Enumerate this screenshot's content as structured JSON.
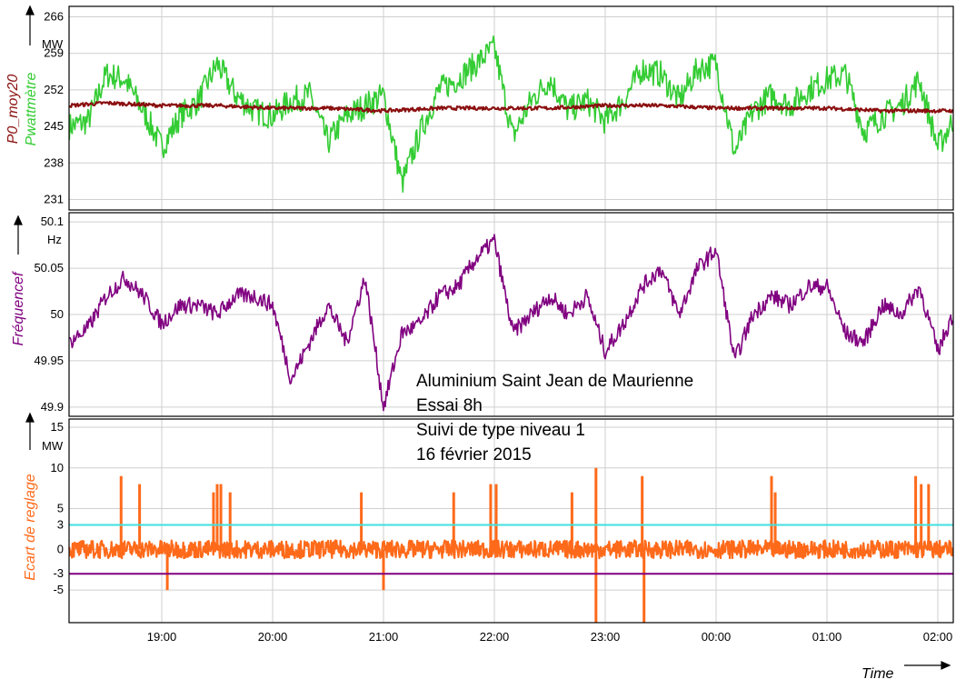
{
  "chart_data": [
    {
      "type": "line",
      "panel": "power",
      "ylabel_primary": "Pwattmètre",
      "ylabel_secondary": "P0_moy20",
      "unit": "MW",
      "ylim": [
        229,
        268
      ],
      "yticks": [
        231,
        238,
        245,
        252,
        259,
        266
      ],
      "grid": true,
      "colors": {
        "primary": "#33cc33",
        "secondary": "#8b1010"
      },
      "series": [
        {
          "name": "Pwattmètre",
          "x": [
            "18:10",
            "18:20",
            "18:30",
            "18:40",
            "18:50",
            "19:00",
            "19:10",
            "19:20",
            "19:30",
            "19:40",
            "19:50",
            "20:00",
            "20:10",
            "20:20",
            "20:30",
            "20:40",
            "20:50",
            "21:00",
            "21:10",
            "21:20",
            "21:30",
            "21:40",
            "21:50",
            "22:00",
            "22:10",
            "22:20",
            "22:30",
            "22:40",
            "22:50",
            "23:00",
            "23:10",
            "23:20",
            "23:30",
            "23:40",
            "23:50",
            "00:00",
            "00:10",
            "00:20",
            "00:30",
            "00:40",
            "00:50",
            "01:00",
            "01:10",
            "01:20",
            "01:30",
            "01:40",
            "01:50",
            "02:00",
            "02:08"
          ],
          "values": [
            245,
            246,
            255,
            254,
            248,
            241,
            247,
            250,
            257,
            251,
            248,
            247,
            250,
            251,
            242,
            247,
            249,
            251,
            234,
            244,
            252,
            254,
            257,
            260,
            243,
            250,
            254,
            248,
            250,
            246,
            250,
            256,
            255,
            250,
            256,
            257,
            240,
            248,
            251,
            249,
            252,
            254,
            255,
            244,
            247,
            249,
            254,
            241,
            246
          ]
        },
        {
          "name": "P0_moy20",
          "x": [
            "18:10",
            "18:30",
            "19:00",
            "19:30",
            "20:00",
            "20:30",
            "21:00",
            "21:30",
            "22:00",
            "22:30",
            "23:00",
            "23:30",
            "00:00",
            "00:30",
            "01:00",
            "01:30",
            "02:00",
            "02:08"
          ],
          "values": [
            249,
            249.5,
            249,
            249,
            248.5,
            248.5,
            248,
            248.5,
            248.5,
            248.5,
            249,
            249,
            248.5,
            248.5,
            248.5,
            248,
            248,
            248
          ]
        }
      ]
    },
    {
      "type": "line",
      "panel": "frequency",
      "ylabel": "Fréquencef",
      "unit": "Hz",
      "ylim": [
        49.89,
        50.11
      ],
      "yticks": [
        49.9,
        49.95,
        50,
        50.05,
        50.1
      ],
      "ytick_labels": [
        "49.9",
        "49.95",
        "50",
        "50.05",
        "50.1"
      ],
      "grid": true,
      "colors": {
        "primary": "#800080"
      },
      "series": [
        {
          "name": "Fréquencef",
          "x": [
            "18:10",
            "18:20",
            "18:30",
            "18:40",
            "18:50",
            "19:00",
            "19:10",
            "19:20",
            "19:30",
            "19:40",
            "19:50",
            "20:00",
            "20:10",
            "20:20",
            "20:30",
            "20:40",
            "20:50",
            "21:00",
            "21:10",
            "21:20",
            "21:30",
            "21:40",
            "21:50",
            "22:00",
            "22:10",
            "22:20",
            "22:30",
            "22:40",
            "22:50",
            "23:00",
            "23:10",
            "23:20",
            "23:30",
            "23:40",
            "23:50",
            "00:00",
            "00:10",
            "00:20",
            "00:30",
            "00:40",
            "00:50",
            "01:00",
            "01:10",
            "01:20",
            "01:30",
            "01:40",
            "01:50",
            "02:00",
            "02:08"
          ],
          "values": [
            49.97,
            49.985,
            50.02,
            50.04,
            50.02,
            49.99,
            50.01,
            50.01,
            50.0,
            50.02,
            50.02,
            50.01,
            49.93,
            49.97,
            50.01,
            49.97,
            50.04,
            49.9,
            49.98,
            49.99,
            50.02,
            50.03,
            50.06,
            50.08,
            49.98,
            50.0,
            50.02,
            50.0,
            50.02,
            49.96,
            49.99,
            50.03,
            50.05,
            50.0,
            50.05,
            50.07,
            49.95,
            50.0,
            50.02,
            50.01,
            50.03,
            50.03,
            49.98,
            49.97,
            50.01,
            50.0,
            50.03,
            49.96,
            50.0
          ]
        }
      ]
    },
    {
      "type": "line",
      "panel": "deviation",
      "ylabel": "Ecart de reglage",
      "unit": "MW",
      "ylim": [
        -9,
        16
      ],
      "yticks": [
        -5,
        0,
        5,
        10,
        15
      ],
      "grid": true,
      "colors": {
        "primary": "#ff6a1a",
        "upper": "#40e0e0",
        "lower": "#800080"
      },
      "reference_lines": [
        {
          "value": 3,
          "label": "3",
          "color": "#40e0e0"
        },
        {
          "value": -3,
          "label": "-3",
          "color": "#800080"
        }
      ],
      "spikes": [
        {
          "x": "18:38",
          "value": 9
        },
        {
          "x": "18:48",
          "value": 8
        },
        {
          "x": "19:03",
          "value": -5
        },
        {
          "x": "19:28",
          "value": 7
        },
        {
          "x": "19:30",
          "value": 8
        },
        {
          "x": "19:32",
          "value": 8
        },
        {
          "x": "19:37",
          "value": 7
        },
        {
          "x": "20:48",
          "value": 7
        },
        {
          "x": "21:00",
          "value": -5
        },
        {
          "x": "21:38",
          "value": 7
        },
        {
          "x": "21:58",
          "value": 8
        },
        {
          "x": "22:01",
          "value": 8
        },
        {
          "x": "22:42",
          "value": 7
        },
        {
          "x": "22:55",
          "value": 10
        },
        {
          "x": "22:55",
          "value": -9
        },
        {
          "x": "23:20",
          "value": 9
        },
        {
          "x": "23:21",
          "value": -9
        },
        {
          "x": "00:30",
          "value": 9
        },
        {
          "x": "00:32",
          "value": 7
        },
        {
          "x": "01:48",
          "value": 9
        },
        {
          "x": "01:51",
          "value": 8
        },
        {
          "x": "01:55",
          "value": 8
        }
      ],
      "series": [
        {
          "name": "Ecart de reglage",
          "x": [
            "18:10",
            "18:30",
            "19:00",
            "19:30",
            "20:00",
            "20:30",
            "21:00",
            "21:30",
            "22:00",
            "22:30",
            "23:00",
            "23:30",
            "00:00",
            "00:30",
            "01:00",
            "01:30",
            "02:00",
            "02:08"
          ],
          "values": [
            0,
            0,
            0,
            0,
            0,
            0,
            0,
            0,
            0,
            0,
            0,
            0,
            0,
            0,
            0,
            0,
            0,
            0
          ]
        }
      ]
    }
  ],
  "xaxis": {
    "label": "Time",
    "ticks": [
      "19:00",
      "20:00",
      "21:00",
      "22:00",
      "23:00",
      "00:00",
      "01:00",
      "02:00"
    ]
  },
  "annotation": {
    "line1": "Aluminium Saint Jean de Maurienne",
    "line2": "Essai 8h",
    "line3": "Suivi de type niveau 1",
    "line4": "16 février 2015"
  }
}
